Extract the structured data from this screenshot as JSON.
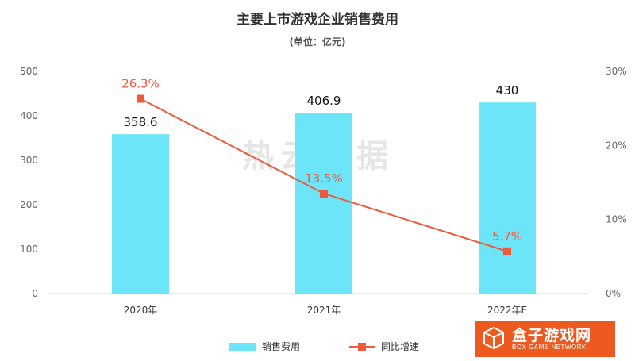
{
  "chart_data": {
    "type": "bar",
    "title": "主要上市游戏企业销售费用",
    "subtitle": "(单位：亿元)",
    "categories": [
      "2020年",
      "2021年",
      "2022年E"
    ],
    "series": [
      {
        "name": "销售费用",
        "type": "bar",
        "axis": "left",
        "values": [
          358.6,
          406.9,
          430
        ],
        "labels": [
          "358.6",
          "406.9",
          "430"
        ],
        "color": "#6ce5f8"
      },
      {
        "name": "同比增速",
        "type": "line",
        "axis": "right",
        "values": [
          26.3,
          13.5,
          5.7
        ],
        "labels": [
          "26.3%",
          "13.5%",
          "5.7%"
        ],
        "color": "#f05a3c"
      }
    ],
    "y_left": {
      "ylim": [
        0,
        500
      ],
      "ticks": [
        "0",
        "100",
        "200",
        "300",
        "400",
        "500"
      ]
    },
    "y_right": {
      "ylim": [
        0,
        30
      ],
      "ticks": [
        "0%",
        "10%",
        "20%",
        "30%"
      ]
    },
    "grid": false,
    "legend_position": "bottom-center"
  },
  "watermark": "热云数据",
  "logo": {
    "name": "盒子游戏网",
    "sub": "BOX GAME NETWORK",
    "color": "#ec5a1f"
  }
}
